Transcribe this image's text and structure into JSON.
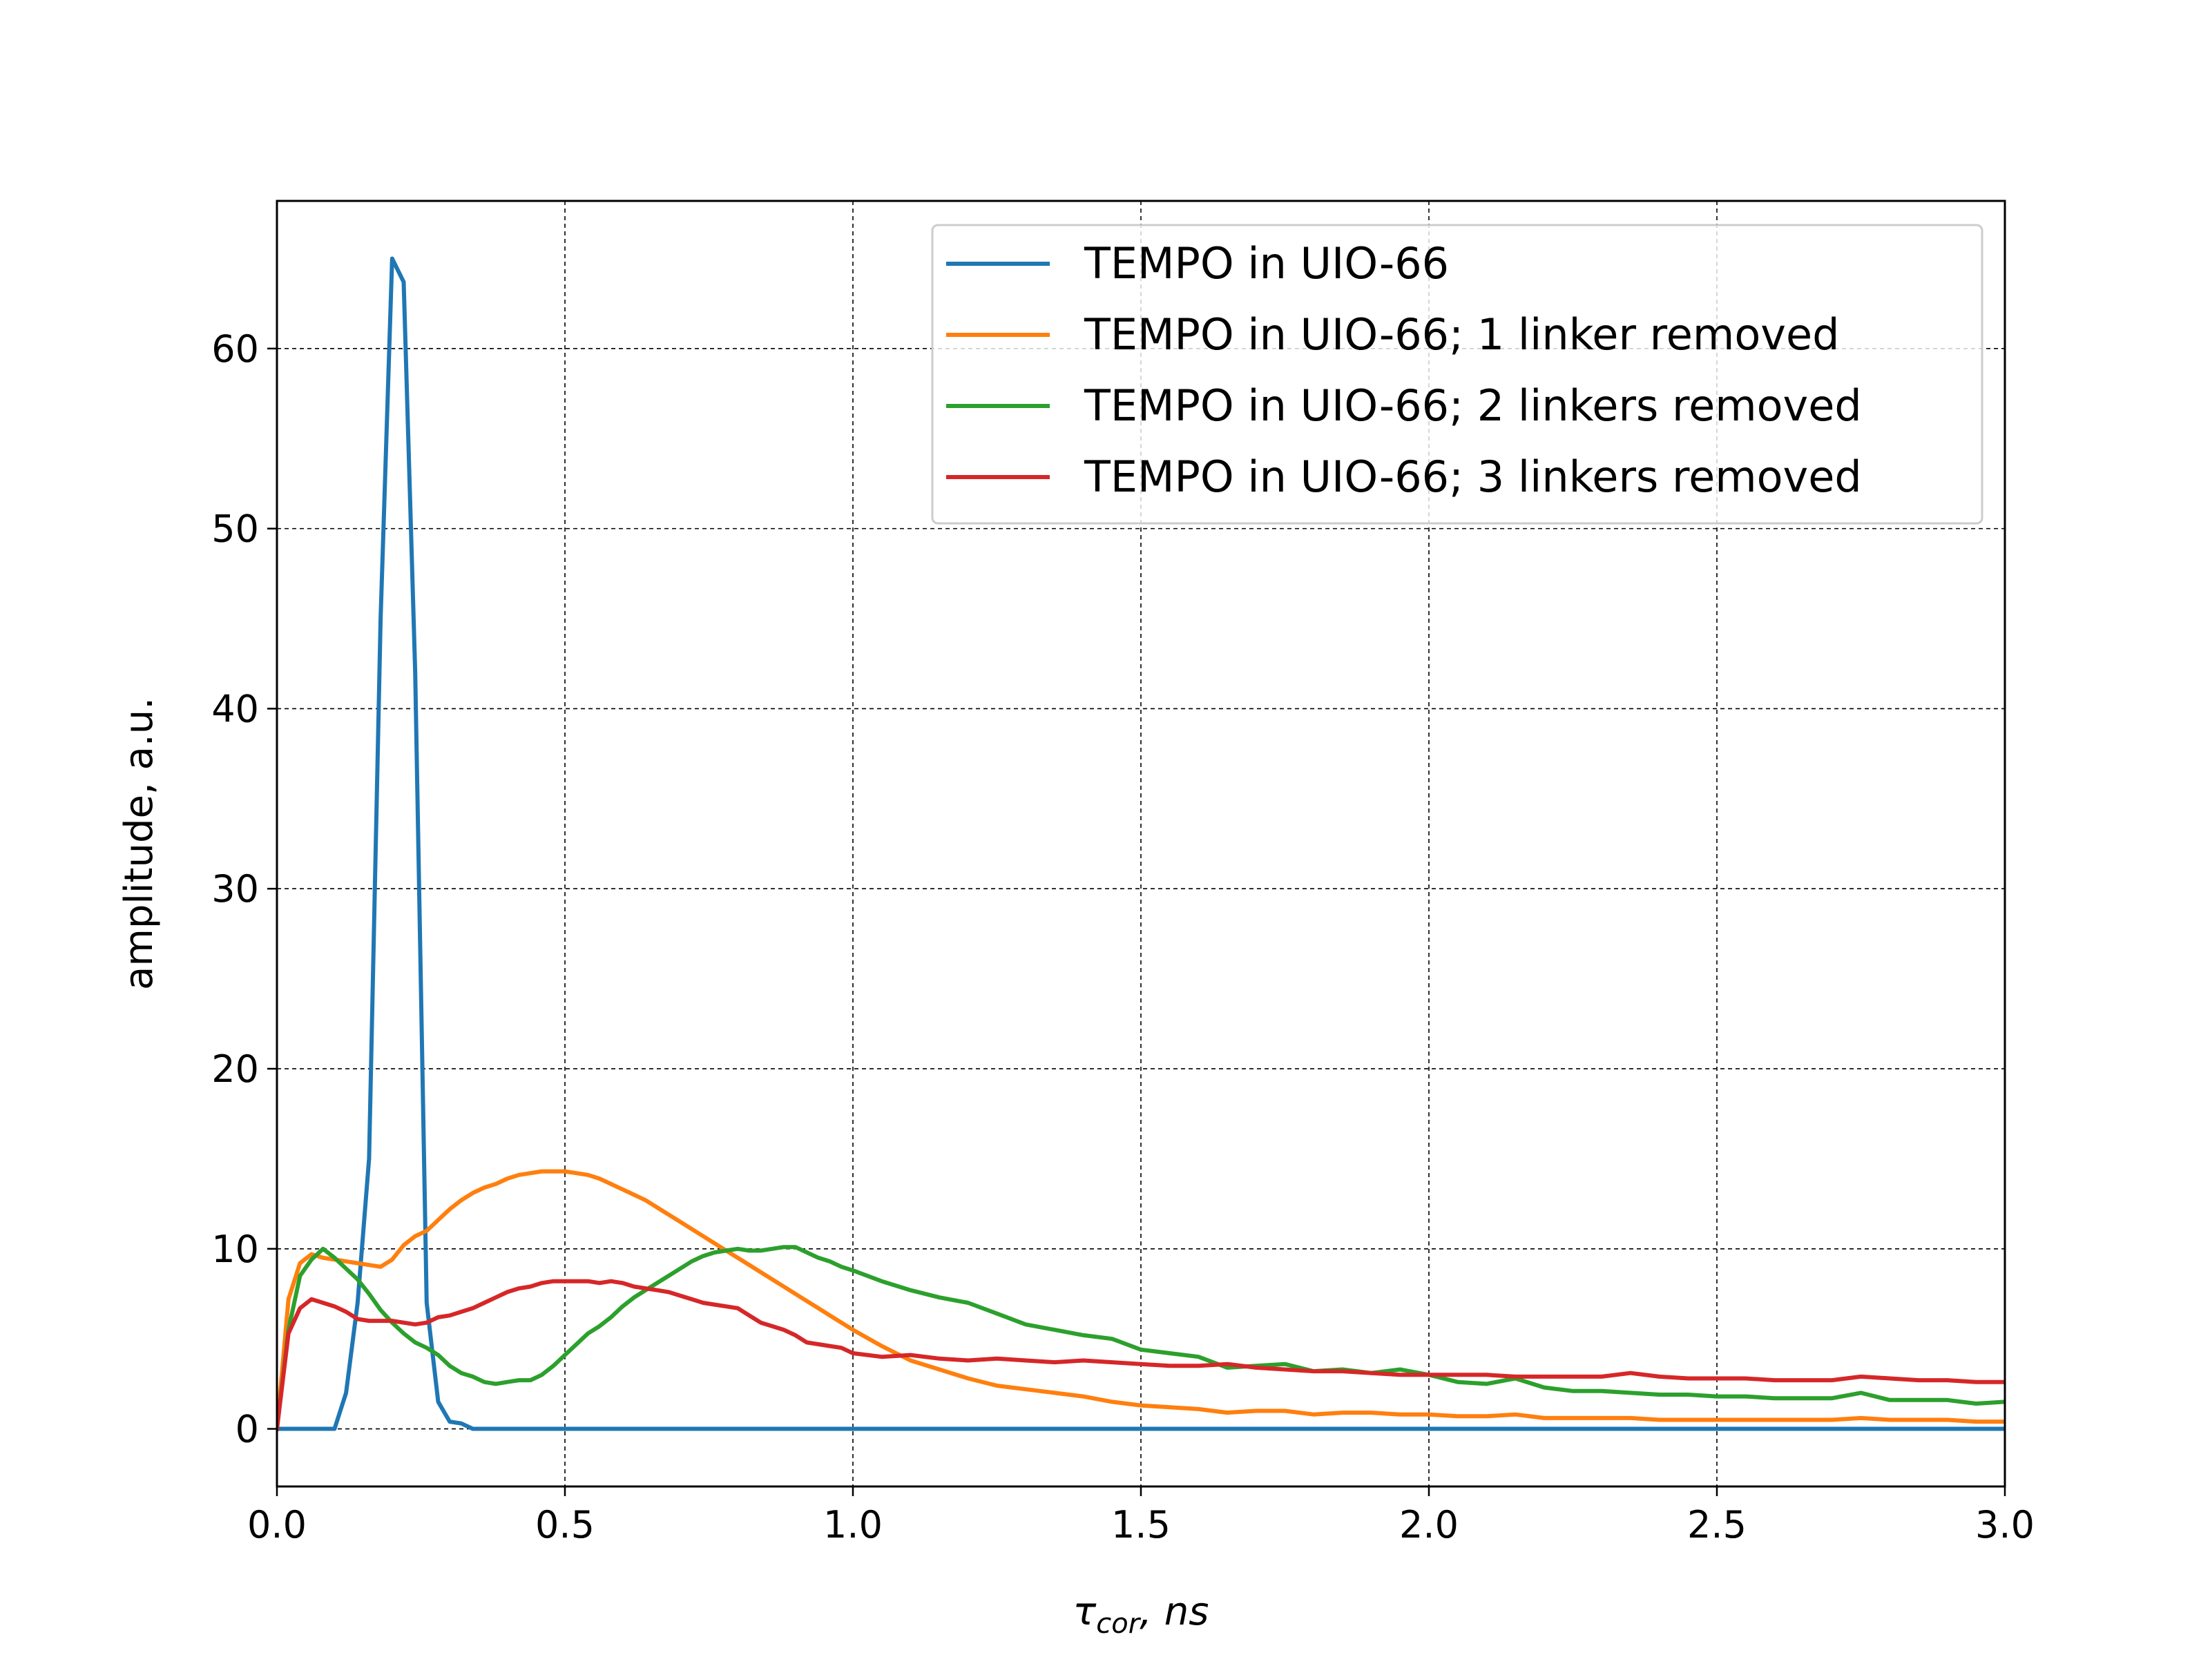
{
  "chart_data": {
    "type": "line",
    "title": "",
    "xlabel": {
      "symbol": "τ",
      "subscript": "cor",
      "suffix": ", ns"
    },
    "ylabel": "amplitude, a.u.",
    "xlim": [
      0.0,
      3.0
    ],
    "ylim": [
      -3.2,
      68.2
    ],
    "xticks": [
      0.0,
      0.5,
      1.0,
      1.5,
      2.0,
      2.5,
      3.0
    ],
    "xtick_labels": [
      "0.0",
      "0.5",
      "1.0",
      "1.5",
      "2.0",
      "2.5",
      "3.0"
    ],
    "yticks": [
      0,
      10,
      20,
      30,
      40,
      50,
      60
    ],
    "ytick_labels": [
      "0",
      "10",
      "20",
      "30",
      "40",
      "50",
      "60"
    ],
    "grid": true,
    "legend_position": "top-right",
    "series": [
      {
        "name": "TEMPO in UIO-66",
        "color": "#1f77b4",
        "x": [
          0.0,
          0.02,
          0.04,
          0.06,
          0.08,
          0.1,
          0.12,
          0.14,
          0.16,
          0.18,
          0.2,
          0.22,
          0.24,
          0.26,
          0.28,
          0.3,
          0.32,
          0.34,
          0.36,
          0.5,
          1.0,
          1.5,
          2.0,
          2.5,
          3.0
        ],
        "y": [
          0,
          0,
          0,
          0,
          0,
          0,
          2,
          7,
          15,
          45,
          65,
          63.7,
          42,
          7,
          1.5,
          0.4,
          0.3,
          0,
          0,
          0,
          0,
          0,
          0,
          0,
          0
        ]
      },
      {
        "name": "TEMPO in UIO-66; 1 linker removed",
        "color": "#ff7f0e",
        "x": [
          0.0,
          0.02,
          0.04,
          0.06,
          0.08,
          0.1,
          0.12,
          0.14,
          0.16,
          0.18,
          0.2,
          0.22,
          0.24,
          0.26,
          0.28,
          0.3,
          0.32,
          0.34,
          0.36,
          0.38,
          0.4,
          0.42,
          0.44,
          0.46,
          0.48,
          0.5,
          0.52,
          0.54,
          0.56,
          0.58,
          0.6,
          0.62,
          0.64,
          0.66,
          0.68,
          0.7,
          0.72,
          0.74,
          0.76,
          0.78,
          0.8,
          0.82,
          0.84,
          0.86,
          0.88,
          0.9,
          0.92,
          0.94,
          0.96,
          0.98,
          1.0,
          1.05,
          1.1,
          1.15,
          1.2,
          1.25,
          1.3,
          1.35,
          1.4,
          1.45,
          1.5,
          1.55,
          1.6,
          1.65,
          1.7,
          1.75,
          1.8,
          1.85,
          1.9,
          1.95,
          2.0,
          2.05,
          2.1,
          2.15,
          2.2,
          2.25,
          2.3,
          2.35,
          2.4,
          2.45,
          2.5,
          2.55,
          2.6,
          2.65,
          2.7,
          2.75,
          2.8,
          2.85,
          2.9,
          2.95,
          3.0
        ],
        "y": [
          0,
          7.2,
          9.2,
          9.7,
          9.5,
          9.4,
          9.3,
          9.2,
          9.1,
          9.0,
          9.4,
          10.2,
          10.7,
          11.0,
          11.6,
          12.2,
          12.7,
          13.1,
          13.4,
          13.6,
          13.9,
          14.1,
          14.2,
          14.3,
          14.3,
          14.3,
          14.2,
          14.1,
          13.9,
          13.6,
          13.3,
          13.0,
          12.7,
          12.3,
          11.9,
          11.5,
          11.1,
          10.7,
          10.3,
          9.9,
          9.5,
          9.1,
          8.7,
          8.3,
          7.9,
          7.5,
          7.1,
          6.7,
          6.3,
          5.9,
          5.5,
          4.6,
          3.8,
          3.3,
          2.8,
          2.4,
          2.2,
          2.0,
          1.8,
          1.5,
          1.3,
          1.2,
          1.1,
          0.9,
          1.0,
          1.0,
          0.8,
          0.9,
          0.9,
          0.8,
          0.8,
          0.7,
          0.7,
          0.8,
          0.6,
          0.6,
          0.6,
          0.6,
          0.5,
          0.5,
          0.5,
          0.5,
          0.5,
          0.5,
          0.5,
          0.6,
          0.5,
          0.5,
          0.5,
          0.4,
          0.4
        ]
      },
      {
        "name": "TEMPO in UIO-66; 2 linkers removed",
        "color": "#2ca02c",
        "x": [
          0.0,
          0.02,
          0.04,
          0.06,
          0.08,
          0.1,
          0.12,
          0.14,
          0.16,
          0.18,
          0.2,
          0.22,
          0.24,
          0.26,
          0.28,
          0.3,
          0.32,
          0.34,
          0.36,
          0.38,
          0.4,
          0.42,
          0.44,
          0.46,
          0.48,
          0.5,
          0.52,
          0.54,
          0.56,
          0.58,
          0.6,
          0.62,
          0.64,
          0.66,
          0.68,
          0.7,
          0.72,
          0.74,
          0.76,
          0.78,
          0.8,
          0.82,
          0.84,
          0.86,
          0.88,
          0.9,
          0.92,
          0.94,
          0.96,
          0.98,
          1.0,
          1.05,
          1.1,
          1.15,
          1.2,
          1.25,
          1.3,
          1.35,
          1.4,
          1.45,
          1.5,
          1.55,
          1.6,
          1.65,
          1.7,
          1.75,
          1.8,
          1.85,
          1.9,
          1.95,
          2.0,
          2.05,
          2.1,
          2.15,
          2.2,
          2.25,
          2.3,
          2.35,
          2.4,
          2.45,
          2.5,
          2.55,
          2.6,
          2.65,
          2.7,
          2.75,
          2.8,
          2.85,
          2.9,
          2.95,
          3.0
        ],
        "y": [
          0,
          5.5,
          8.5,
          9.4,
          10.0,
          9.5,
          8.9,
          8.3,
          7.5,
          6.6,
          5.9,
          5.3,
          4.8,
          4.5,
          4.1,
          3.5,
          3.1,
          2.9,
          2.6,
          2.5,
          2.6,
          2.7,
          2.7,
          3.0,
          3.5,
          4.1,
          4.7,
          5.3,
          5.7,
          6.2,
          6.8,
          7.3,
          7.7,
          8.1,
          8.5,
          8.9,
          9.3,
          9.6,
          9.8,
          9.9,
          10.0,
          9.9,
          9.9,
          10.0,
          10.1,
          10.1,
          9.8,
          9.5,
          9.3,
          9.0,
          8.8,
          8.2,
          7.7,
          7.3,
          7.0,
          6.4,
          5.8,
          5.5,
          5.2,
          5.0,
          4.4,
          4.2,
          4.0,
          3.4,
          3.5,
          3.6,
          3.2,
          3.3,
          3.1,
          3.3,
          3.0,
          2.6,
          2.5,
          2.8,
          2.3,
          2.1,
          2.1,
          2.0,
          1.9,
          1.9,
          1.8,
          1.8,
          1.7,
          1.7,
          1.7,
          2.0,
          1.6,
          1.6,
          1.6,
          1.4,
          1.5
        ]
      },
      {
        "name": "TEMPO in UIO-66; 3 linkers removed",
        "color": "#d62728",
        "x": [
          0.0,
          0.02,
          0.04,
          0.06,
          0.08,
          0.1,
          0.12,
          0.14,
          0.16,
          0.18,
          0.2,
          0.22,
          0.24,
          0.26,
          0.28,
          0.3,
          0.32,
          0.34,
          0.36,
          0.38,
          0.4,
          0.42,
          0.44,
          0.46,
          0.48,
          0.5,
          0.52,
          0.54,
          0.56,
          0.58,
          0.6,
          0.62,
          0.64,
          0.66,
          0.68,
          0.7,
          0.72,
          0.74,
          0.76,
          0.78,
          0.8,
          0.82,
          0.84,
          0.86,
          0.88,
          0.9,
          0.92,
          0.94,
          0.96,
          0.98,
          1.0,
          1.05,
          1.1,
          1.15,
          1.2,
          1.25,
          1.3,
          1.35,
          1.4,
          1.45,
          1.5,
          1.55,
          1.6,
          1.65,
          1.7,
          1.75,
          1.8,
          1.85,
          1.9,
          1.95,
          2.0,
          2.05,
          2.1,
          2.15,
          2.2,
          2.25,
          2.3,
          2.35,
          2.4,
          2.45,
          2.5,
          2.55,
          2.6,
          2.65,
          2.7,
          2.75,
          2.8,
          2.85,
          2.9,
          2.95,
          3.0
        ],
        "y": [
          0,
          5.3,
          6.7,
          7.2,
          7.0,
          6.8,
          6.5,
          6.1,
          6.0,
          6.0,
          6.0,
          5.9,
          5.8,
          5.9,
          6.2,
          6.3,
          6.5,
          6.7,
          7.0,
          7.3,
          7.6,
          7.8,
          7.9,
          8.1,
          8.2,
          8.2,
          8.2,
          8.2,
          8.1,
          8.2,
          8.1,
          7.9,
          7.8,
          7.7,
          7.6,
          7.4,
          7.2,
          7.0,
          6.9,
          6.8,
          6.7,
          6.3,
          5.9,
          5.7,
          5.5,
          5.2,
          4.8,
          4.7,
          4.6,
          4.5,
          4.2,
          4.0,
          4.1,
          3.9,
          3.8,
          3.9,
          3.8,
          3.7,
          3.8,
          3.7,
          3.6,
          3.5,
          3.5,
          3.6,
          3.4,
          3.3,
          3.2,
          3.2,
          3.1,
          3.0,
          3.0,
          3.0,
          3.0,
          2.9,
          2.9,
          2.9,
          2.9,
          3.1,
          2.9,
          2.8,
          2.8,
          2.8,
          2.7,
          2.7,
          2.7,
          2.9,
          2.8,
          2.7,
          2.7,
          2.6,
          2.6
        ]
      }
    ]
  }
}
